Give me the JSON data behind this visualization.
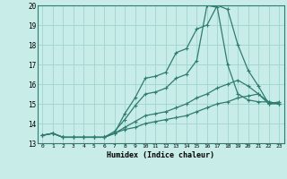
{
  "xlabel": "Humidex (Indice chaleur)",
  "background_color": "#c8ece8",
  "grid_color": "#a0d4cc",
  "line_color": "#2e7d6e",
  "xlim": [
    -0.5,
    23.5
  ],
  "ylim": [
    13,
    20
  ],
  "xtick_vals": [
    0,
    1,
    2,
    3,
    4,
    5,
    6,
    7,
    8,
    9,
    10,
    11,
    12,
    13,
    14,
    15,
    16,
    17,
    18,
    19,
    20,
    21,
    22,
    23
  ],
  "ytick_vals": [
    13,
    14,
    15,
    16,
    17,
    18,
    19,
    20
  ],
  "lines": [
    {
      "x": [
        0,
        1,
        2,
        3,
        4,
        5,
        6,
        7,
        8,
        9,
        10,
        11,
        12,
        13,
        14,
        15,
        16,
        17,
        18,
        19,
        20,
        21,
        22,
        23
      ],
      "y": [
        13.4,
        13.5,
        13.3,
        13.3,
        13.3,
        13.3,
        13.3,
        13.5,
        14.5,
        15.3,
        16.3,
        16.4,
        16.6,
        17.6,
        17.8,
        18.8,
        19.0,
        20.0,
        19.8,
        18.0,
        16.7,
        15.9,
        15.0,
        15.1
      ]
    },
    {
      "x": [
        0,
        1,
        2,
        3,
        4,
        5,
        6,
        7,
        8,
        9,
        10,
        11,
        12,
        13,
        14,
        15,
        16,
        17,
        18,
        19,
        20,
        21,
        22,
        23
      ],
      "y": [
        13.4,
        13.5,
        13.3,
        13.3,
        13.3,
        13.3,
        13.3,
        13.6,
        14.2,
        14.9,
        15.5,
        15.6,
        15.8,
        16.3,
        16.5,
        17.2,
        20.0,
        19.9,
        17.0,
        15.5,
        15.2,
        15.1,
        15.1,
        15.0
      ]
    },
    {
      "x": [
        0,
        1,
        2,
        3,
        4,
        5,
        6,
        7,
        8,
        9,
        10,
        11,
        12,
        13,
        14,
        15,
        16,
        17,
        18,
        19,
        20,
        21,
        22,
        23
      ],
      "y": [
        13.4,
        13.5,
        13.3,
        13.3,
        13.3,
        13.3,
        13.3,
        13.5,
        13.8,
        14.1,
        14.4,
        14.5,
        14.6,
        14.8,
        15.0,
        15.3,
        15.5,
        15.8,
        16.0,
        16.2,
        15.9,
        15.5,
        15.1,
        15.0
      ]
    },
    {
      "x": [
        0,
        1,
        2,
        3,
        4,
        5,
        6,
        7,
        8,
        9,
        10,
        11,
        12,
        13,
        14,
        15,
        16,
        17,
        18,
        19,
        20,
        21,
        22,
        23
      ],
      "y": [
        13.4,
        13.5,
        13.3,
        13.3,
        13.3,
        13.3,
        13.3,
        13.5,
        13.7,
        13.8,
        14.0,
        14.1,
        14.2,
        14.3,
        14.4,
        14.6,
        14.8,
        15.0,
        15.1,
        15.3,
        15.4,
        15.5,
        15.0,
        15.0
      ]
    }
  ]
}
